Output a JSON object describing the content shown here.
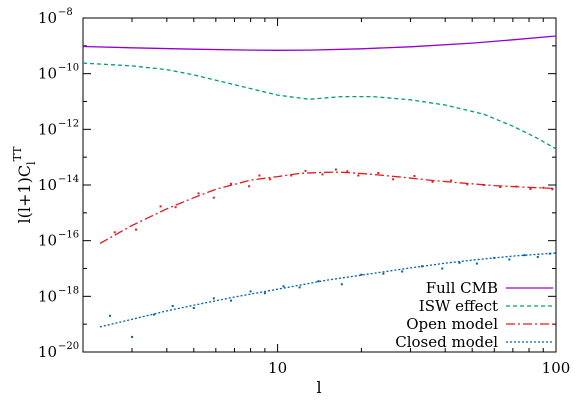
{
  "chart_data": {
    "type": "line",
    "xlabel": "l",
    "ylabel": {
      "base": "l(l+1)C",
      "sub": "l",
      "sup": "TT"
    },
    "x_scale": "log",
    "y_scale": "log",
    "xlim": [
      2,
      100
    ],
    "ylim": [
      1e-20,
      1e-08
    ],
    "x_ticks": [
      {
        "value": 10,
        "label": "10"
      },
      {
        "value": 100,
        "label": "100"
      }
    ],
    "y_ticks": [
      {
        "value": 1e-20,
        "base": "10",
        "exp": "−20"
      },
      {
        "value": 1e-18,
        "base": "10",
        "exp": "−18"
      },
      {
        "value": 1e-16,
        "base": "10",
        "exp": "−16"
      },
      {
        "value": 1e-14,
        "base": "10",
        "exp": "−14"
      },
      {
        "value": 1e-12,
        "base": "10",
        "exp": "−12"
      },
      {
        "value": 1e-10,
        "base": "10",
        "exp": "−10"
      },
      {
        "value": 1e-08,
        "base": "10",
        "exp": "−8"
      }
    ],
    "legend_position": "bottom-right",
    "series": [
      {
        "name": "Full CMB",
        "color": "#9400d3",
        "dash": "solid",
        "x": [
          2,
          3,
          5,
          8,
          10,
          13,
          20,
          30,
          50,
          70,
          100
        ],
        "y": [
          9.5e-10,
          8.5e-10,
          7.6e-10,
          7e-10,
          6.9e-10,
          7e-10,
          7.8e-10,
          9.2e-10,
          1.25e-09,
          1.65e-09,
          2.25e-09
        ]
      },
      {
        "name": "ISW effect",
        "color": "#009e73",
        "dash": "4,3",
        "x": [
          2,
          3,
          4,
          5,
          7,
          10,
          13,
          17,
          22,
          30,
          40,
          55,
          70,
          85,
          100
        ],
        "y": [
          2.4e-10,
          1.9e-10,
          1.4e-10,
          9e-11,
          4e-11,
          1.7e-11,
          1.2e-11,
          1.5e-11,
          1.5e-11,
          1.15e-11,
          7.5e-12,
          3.5e-12,
          1.3e-12,
          5e-13,
          2e-13
        ]
      },
      {
        "name": "Open model",
        "color": "#e41a1c",
        "dash": "9,3,2,3",
        "x": [
          2.3,
          3,
          4,
          5,
          6,
          8,
          10,
          12,
          14,
          16,
          18,
          22,
          28,
          35,
          45,
          60,
          80,
          100
        ],
        "y": [
          8e-17,
          3.5e-16,
          1.4e-15,
          3.5e-15,
          7e-15,
          1.5e-14,
          2e-14,
          2.6e-14,
          2.8e-14,
          2.9e-14,
          2.8e-14,
          2.4e-14,
          1.9e-14,
          1.5e-14,
          1.2e-14,
          9.5e-15,
          8.2e-15,
          7.5e-15
        ]
      },
      {
        "name": "Closed model",
        "color": "#0060ad",
        "dash": "2,2",
        "x": [
          2.3,
          3,
          4,
          5,
          7,
          10,
          15,
          20,
          30,
          40,
          50,
          70,
          100
        ],
        "y": [
          8e-20,
          1.5e-19,
          3e-19,
          4.8e-19,
          9.5e-19,
          1.8e-18,
          3.8e-18,
          5.8e-18,
          1.05e-17,
          1.55e-17,
          2e-17,
          2.8e-17,
          3.6e-17
        ]
      }
    ],
    "scatter": [
      {
        "series": "Open model",
        "x": [
          2.6,
          3.1,
          3.8,
          4.3,
          5.2,
          5.9,
          6.8,
          7.9,
          8.6,
          9.4,
          11.2,
          12.6,
          14.5,
          16.2,
          17.8,
          19.5,
          23,
          26,
          31,
          36,
          42,
          48,
          55,
          63,
          72,
          81,
          90,
          97
        ],
        "y": [
          2e-16,
          2.5e-16,
          1.7e-15,
          1.6e-15,
          5e-15,
          3.5e-15,
          1.1e-14,
          9e-15,
          2.2e-14,
          1.6e-14,
          2.2e-14,
          3.2e-14,
          2.4e-14,
          3.6e-14,
          3.1e-14,
          2.2e-14,
          2.7e-14,
          1.6e-14,
          2.1e-14,
          1.3e-14,
          1.45e-14,
          1.05e-14,
          1e-14,
          8.5e-15,
          8.8e-15,
          7.2e-15,
          8e-15,
          7e-15
        ]
      },
      {
        "series": "Closed model",
        "x": [
          2.5,
          3.0,
          3.6,
          4.2,
          5.0,
          5.9,
          6.8,
          8.0,
          9.0,
          10.5,
          12,
          14,
          17,
          20,
          24,
          28,
          33,
          39,
          45,
          52,
          60,
          68,
          77,
          86,
          95
        ],
        "y": [
          2e-19,
          3.5e-20,
          2.2e-19,
          4.5e-19,
          3.8e-19,
          8.5e-19,
          7e-19,
          1.5e-18,
          1.3e-18,
          2.3e-18,
          2.1e-18,
          3.5e-18,
          2.7e-18,
          6e-18,
          6.5e-18,
          7.8e-18,
          1.2e-17,
          1e-17,
          1.6e-17,
          1.5e-17,
          2.4e-17,
          2.1e-17,
          3e-17,
          2.6e-17,
          3.4e-17
        ]
      }
    ]
  }
}
